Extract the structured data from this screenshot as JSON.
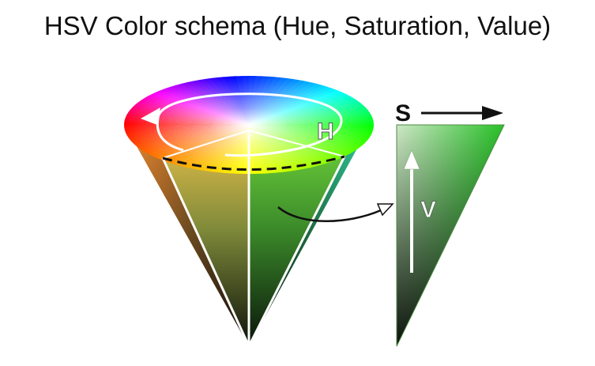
{
  "title": "HSV Color schema (Hue, Saturation, Value)",
  "labels": {
    "hue": "H",
    "saturation": "S",
    "value": "V"
  },
  "colors": {
    "hue_wheel": [
      "#ff0000",
      "#ffff00",
      "#00ff00",
      "#00ffff",
      "#0000ff",
      "#ff00ff"
    ],
    "value_triangle_top": "#2ecc2e",
    "value_triangle_bottom": "#0a1a0a"
  }
}
